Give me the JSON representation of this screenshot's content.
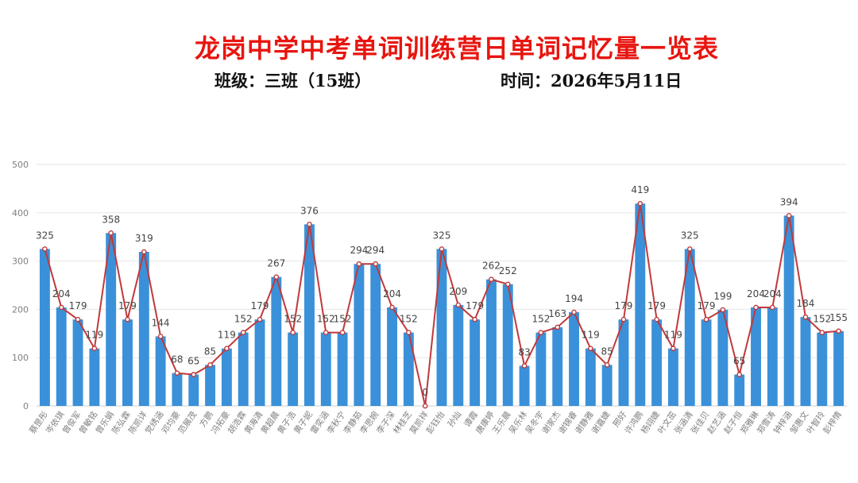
{
  "header": {
    "title": "龙岗中学中考单词训练营日单词记忆量一览表",
    "class_label": "班级：三班（15班）",
    "date_label": "时间：2026年5月11日"
  },
  "colors": {
    "bar": "#3a91d9",
    "line": "#c0393b",
    "title": "#e8150f",
    "grid": "#e6e6e6",
    "axis_text": "#7f7f7f"
  },
  "chart_data": {
    "type": "bar",
    "ylim": [
      0,
      500
    ],
    "yticks": [
      0,
      100,
      200,
      300,
      400,
      500
    ],
    "grid": true,
    "overlay": "line",
    "categories": [
      "蔡昰彤",
      "岑依琪",
      "曾俊军",
      "曾敏铭",
      "曾乐娟",
      "陈弘霖",
      "陈凯详",
      "党绣涵",
      "邓均豪",
      "范展茂",
      "方鹏",
      "冯拓豪",
      "胡浩霖",
      "黄海清",
      "黄超晨",
      "黄子浩",
      "黄子妮",
      "雷奕涵",
      "李秋宁",
      "李静茹",
      "李思婉",
      "李子深",
      "林桂芝",
      "莫凯祥",
      "彭钰怡",
      "孙灿",
      "谭霞",
      "唐康婷",
      "王乐晨",
      "吴乐林",
      "吴冬宇",
      "谢家杰",
      "谢锦睿",
      "谢静雅",
      "谢嘉婕",
      "邢好",
      "许鸿鹏",
      "杨翊婕",
      "叶文茁",
      "张涵清",
      "张佳贝",
      "赵艺涵",
      "赵子恒",
      "郑雅琳",
      "郑雪涛",
      "钟梓涵",
      "邹惠文",
      "叶智玲",
      "彭梓情"
    ],
    "values": [
      325,
      204,
      179,
      119,
      358,
      179,
      319,
      144,
      68,
      65,
      85,
      119,
      152,
      179,
      267,
      152,
      376,
      152,
      152,
      294,
      294,
      204,
      152,
      0,
      325,
      209,
      179,
      262,
      252,
      83,
      152,
      163,
      194,
      119,
      85,
      179,
      419,
      179,
      119,
      325,
      179,
      199,
      65,
      204,
      204,
      394,
      184,
      152,
      155
    ]
  }
}
